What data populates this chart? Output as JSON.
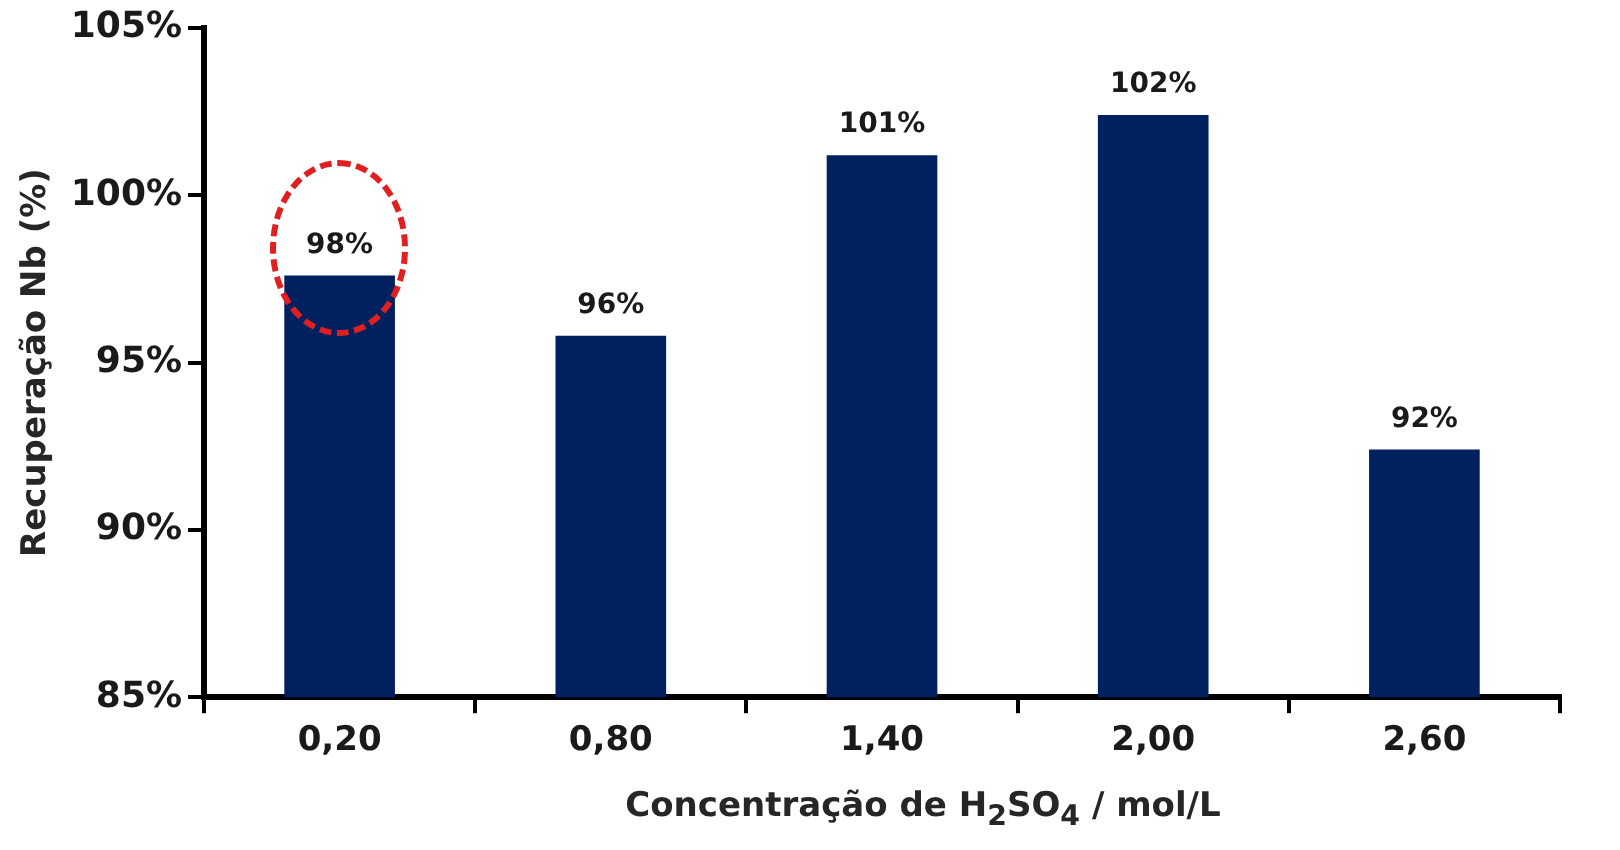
{
  "chart_data": {
    "type": "bar",
    "xlabel": "Concentração de H$_{2}$SO$_{4}$ / mol/L",
    "ylabel": "Recuperação Nb (%)",
    "categories": [
      "0,20",
      "0,80",
      "1,40",
      "2,00",
      "2,60"
    ],
    "values": [
      97.6,
      95.8,
      101.2,
      102.4,
      92.4
    ],
    "value_labels": [
      "98%",
      "96%",
      "101%",
      "102%",
      "92%"
    ],
    "color": "#002060",
    "ylim": [
      85,
      105
    ],
    "yticks": [
      {
        "value": 85,
        "label": "85%"
      },
      {
        "value": 90,
        "label": "90%"
      },
      {
        "value": 95,
        "label": "95%"
      },
      {
        "value": 100,
        "label": "100%"
      },
      {
        "value": 105,
        "label": "105%"
      }
    ],
    "grid": false,
    "legend": false
  }
}
